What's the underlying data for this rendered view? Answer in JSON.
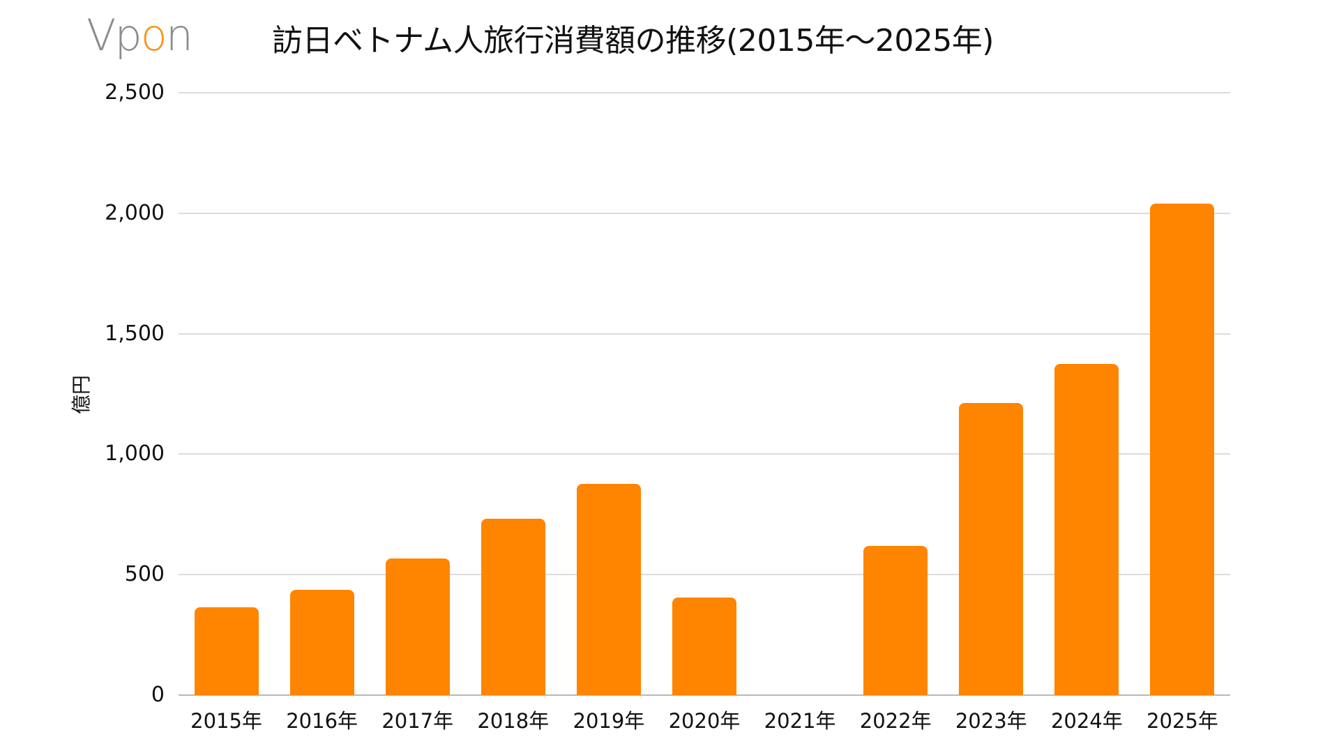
{
  "logo": {
    "text_before": "Vp",
    "text_accent": "o",
    "text_after": "n",
    "gray": "#8c8c8c",
    "accent": "#f7941d"
  },
  "chart_data": {
    "type": "bar",
    "title": "訪日ベトナム人旅行消費額の推移(2015年～2025年)",
    "xlabel": "",
    "ylabel": "億円",
    "categories": [
      "2015年",
      "2016年",
      "2017年",
      "2018年",
      "2019年",
      "2020年",
      "2021年",
      "2022年",
      "2023年",
      "2024年",
      "2025年"
    ],
    "values": [
      365,
      438,
      567,
      732,
      877,
      405,
      0,
      619,
      1212,
      1374,
      2040
    ],
    "ylim": [
      0,
      2500
    ],
    "yticks": [
      0,
      500,
      1000,
      1500,
      2000,
      2500
    ],
    "ytick_labels": [
      "0",
      "500",
      "1,000",
      "1,500",
      "2,000",
      "2,500"
    ],
    "grid": true,
    "legend": "none",
    "bar_color": "#ff8400"
  }
}
